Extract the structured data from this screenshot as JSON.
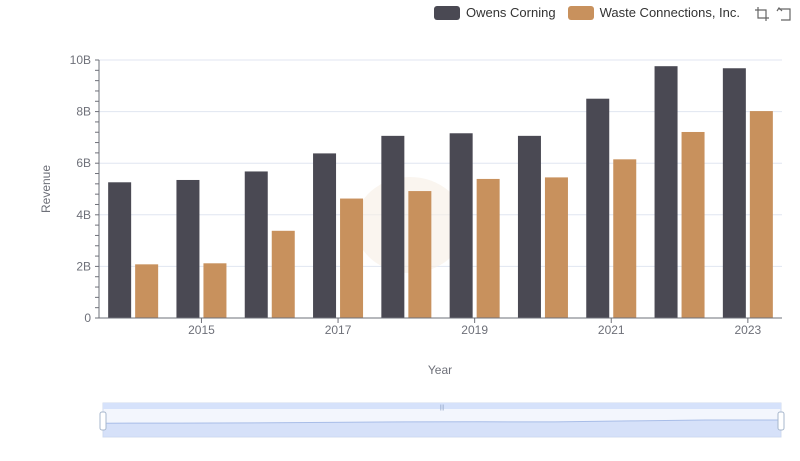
{
  "legend": [
    {
      "name": "Owens Corning",
      "color": "#4a4953"
    },
    {
      "name": "Waste Connections, Inc.",
      "color": "#c8915d"
    }
  ],
  "toolbox": {
    "icons": [
      "zoom-icon",
      "restore-icon"
    ]
  },
  "chart_data": {
    "type": "bar",
    "xlabel": "Year",
    "ylabel": "Revenue",
    "x": [
      2014,
      2015,
      2016,
      2017,
      2018,
      2019,
      2020,
      2021,
      2022,
      2023
    ],
    "x_tick_labels": [
      "2015",
      "2017",
      "2019",
      "2021",
      "2023"
    ],
    "y_tick_labels": [
      "0",
      "2B",
      "4B",
      "6B",
      "8B",
      "10B"
    ],
    "ylim": [
      0,
      10000000000
    ],
    "grid": true,
    "legend_position": "top-right",
    "series": [
      {
        "name": "Owens Corning",
        "color": "#4a4953",
        "values": [
          5260000000,
          5350000000,
          5680000000,
          6380000000,
          7060000000,
          7160000000,
          7060000000,
          8500000000,
          9760000000,
          9680000000
        ]
      },
      {
        "name": "Waste Connections, Inc.",
        "color": "#c8915d",
        "values": [
          2080000000,
          2120000000,
          3380000000,
          4630000000,
          4920000000,
          5390000000,
          5450000000,
          6150000000,
          7210000000,
          8020000000
        ]
      }
    ]
  },
  "data_zoom": {
    "start_percent": 0,
    "end_percent": 100,
    "handle_color": "#d6e2fb"
  }
}
